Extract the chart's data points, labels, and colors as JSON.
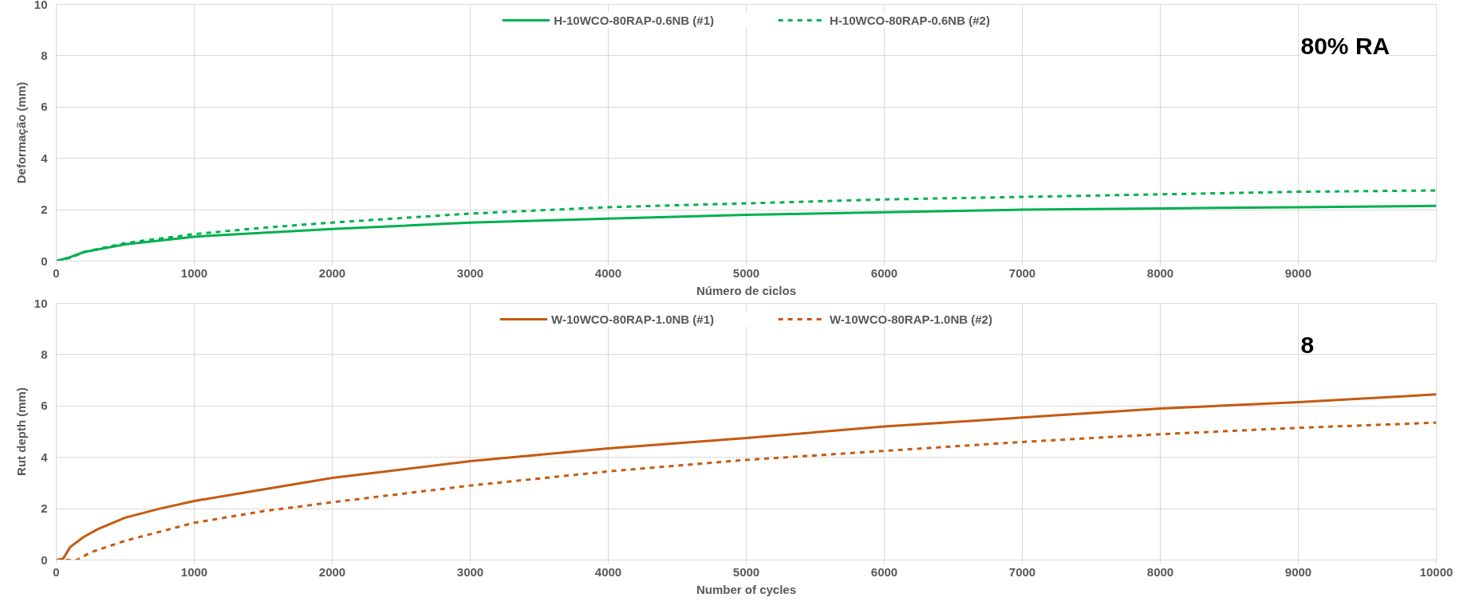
{
  "chart_data": [
    {
      "type": "line",
      "xlabel": "Número de ciclos",
      "ylabel": "Deformação (mm)",
      "xlim": [
        0,
        10000
      ],
      "ylim": [
        0,
        10
      ],
      "xticks": [
        0,
        1000,
        2000,
        3000,
        4000,
        5000,
        6000,
        7000,
        8000,
        9000
      ],
      "yticks": [
        0,
        2,
        4,
        6,
        8,
        10
      ],
      "grid": true,
      "legend": "top",
      "annotations": [
        "80% RA"
      ],
      "x": [
        0,
        100,
        200,
        500,
        1000,
        1500,
        2000,
        3000,
        4000,
        5000,
        6000,
        7000,
        8000,
        9000,
        10000
      ],
      "series": [
        {
          "name": "H-10WCO-80RAP-0.6NB (#1)",
          "color": "#00b050",
          "line_style": "solid",
          "values": [
            0,
            0.15,
            0.35,
            0.65,
            0.95,
            1.1,
            1.25,
            1.5,
            1.65,
            1.8,
            1.9,
            2.0,
            2.05,
            2.1,
            2.15
          ]
        },
        {
          "name": "H-10WCO-80RAP-0.6NB (#2)",
          "color": "#00b050",
          "line_style": "dashed",
          "values": [
            0,
            0.12,
            0.35,
            0.7,
            1.05,
            1.3,
            1.5,
            1.85,
            2.1,
            2.25,
            2.4,
            2.5,
            2.6,
            2.7,
            2.75
          ]
        }
      ]
    },
    {
      "type": "line",
      "xlabel": "Number of cycles",
      "ylabel": "Rut depth (mm)",
      "xlim": [
        0,
        10000
      ],
      "ylim": [
        0,
        10
      ],
      "xticks": [
        0,
        1000,
        2000,
        3000,
        4000,
        5000,
        6000,
        7000,
        8000,
        9000,
        10000
      ],
      "yticks": [
        0,
        2,
        4,
        6,
        8,
        10
      ],
      "grid": true,
      "legend": "top",
      "annotations": [
        "8"
      ],
      "series": [
        {
          "name": "W-10WCO-80RAP-1.0NB (#1)",
          "color": "#c55a11",
          "line_style": "solid",
          "x": [
            0,
            50,
            100,
            200,
            300,
            500,
            750,
            1000,
            1500,
            2000,
            3000,
            4000,
            5000,
            6000,
            7000,
            8000,
            9000,
            10000
          ],
          "values": [
            0,
            0.05,
            0.5,
            0.9,
            1.2,
            1.65,
            2.0,
            2.3,
            2.75,
            3.2,
            3.85,
            4.35,
            4.75,
            5.2,
            5.55,
            5.9,
            6.15,
            6.45
          ]
        },
        {
          "name": "W-10WCO-80RAP-1.0NB (#2)",
          "color": "#c55a11",
          "line_style": "dashed",
          "x": [
            0,
            150,
            250,
            500,
            750,
            1000,
            1500,
            2000,
            3000,
            4000,
            5000,
            6000,
            7000,
            8000,
            9000,
            10000
          ],
          "values": [
            0,
            0,
            0.3,
            0.75,
            1.1,
            1.45,
            1.9,
            2.25,
            2.9,
            3.45,
            3.9,
            4.25,
            4.6,
            4.9,
            5.15,
            5.35
          ]
        }
      ]
    }
  ]
}
